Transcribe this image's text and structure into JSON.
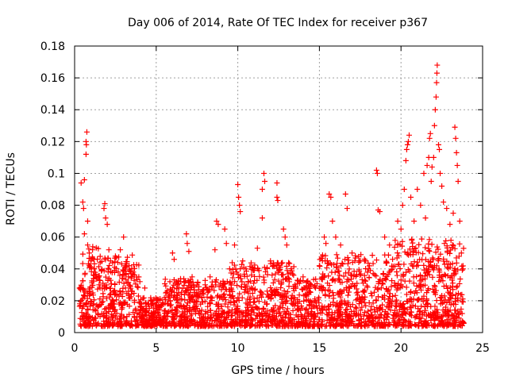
{
  "chart_data": {
    "type": "scatter",
    "title": "Day 006 of 2014, Rate Of TEC Index for receiver p367",
    "xlabel": "GPS time / hours",
    "ylabel": "ROTI / TECUs",
    "xlim": [
      0,
      25
    ],
    "ylim": [
      0,
      0.18
    ],
    "x_ticks": [
      0,
      5,
      10,
      15,
      20,
      25
    ],
    "y_ticks": [
      0,
      0.02,
      0.04,
      0.06,
      0.08,
      0.1,
      0.12,
      0.14,
      0.16,
      0.18
    ],
    "x_tick_labels": [
      "0",
      "5",
      "10",
      "15",
      "20",
      "25"
    ],
    "y_tick_labels": [
      "0",
      "0.02",
      "0.04",
      "0.06",
      "0.08",
      "0.1",
      "0.12",
      "0.14",
      "0.16",
      "0.18"
    ],
    "grid": true,
    "marker": "+",
    "color": "#ff0000",
    "series": [
      {
        "name": "ROTI",
        "points": [
          [
            0.3,
            0.028
          ],
          [
            0.4,
            0.094
          ],
          [
            0.5,
            0.082
          ],
          [
            0.55,
            0.078
          ],
          [
            0.6,
            0.096
          ],
          [
            0.6,
            0.062
          ],
          [
            0.7,
            0.12
          ],
          [
            0.7,
            0.112
          ],
          [
            0.72,
            0.118
          ],
          [
            0.75,
            0.126
          ],
          [
            0.8,
            0.07
          ],
          [
            0.8,
            0.055
          ],
          [
            0.9,
            0.05
          ],
          [
            1.0,
            0.045
          ],
          [
            1.1,
            0.052
          ],
          [
            1.2,
            0.04
          ],
          [
            1.3,
            0.035
          ],
          [
            1.5,
            0.03
          ],
          [
            1.8,
            0.078
          ],
          [
            1.85,
            0.081
          ],
          [
            1.9,
            0.072
          ],
          [
            2.0,
            0.068
          ],
          [
            2.1,
            0.052
          ],
          [
            2.2,
            0.045
          ],
          [
            2.5,
            0.048
          ],
          [
            2.8,
            0.052
          ],
          [
            3.0,
            0.06
          ],
          [
            3.1,
            0.042
          ],
          [
            3.3,
            0.035
          ],
          [
            3.6,
            0.038
          ],
          [
            4.0,
            0.032
          ],
          [
            4.3,
            0.028
          ],
          [
            4.5,
            0.018
          ],
          [
            5.0,
            0.015
          ],
          [
            5.5,
            0.022
          ],
          [
            6.0,
            0.05
          ],
          [
            6.1,
            0.046
          ],
          [
            6.3,
            0.03
          ],
          [
            6.5,
            0.032
          ],
          [
            6.85,
            0.062
          ],
          [
            6.9,
            0.056
          ],
          [
            7.0,
            0.051
          ],
          [
            7.2,
            0.035
          ],
          [
            7.5,
            0.03
          ],
          [
            8.0,
            0.03
          ],
          [
            8.3,
            0.035
          ],
          [
            8.6,
            0.052
          ],
          [
            8.7,
            0.07
          ],
          [
            8.8,
            0.068
          ],
          [
            9.2,
            0.065
          ],
          [
            9.3,
            0.056
          ],
          [
            9.5,
            0.04
          ],
          [
            9.8,
            0.055
          ],
          [
            10.0,
            0.093
          ],
          [
            10.05,
            0.085
          ],
          [
            10.1,
            0.08
          ],
          [
            10.15,
            0.076
          ],
          [
            10.3,
            0.045
          ],
          [
            10.5,
            0.04
          ],
          [
            11.0,
            0.04
          ],
          [
            11.2,
            0.053
          ],
          [
            11.5,
            0.072
          ],
          [
            11.5,
            0.09
          ],
          [
            11.6,
            0.1
          ],
          [
            11.65,
            0.095
          ],
          [
            12.0,
            0.045
          ],
          [
            12.2,
            0.042
          ],
          [
            12.4,
            0.085
          ],
          [
            12.45,
            0.083
          ],
          [
            12.4,
            0.094
          ],
          [
            12.8,
            0.065
          ],
          [
            12.9,
            0.06
          ],
          [
            13.0,
            0.055
          ],
          [
            13.5,
            0.03
          ],
          [
            14.0,
            0.035
          ],
          [
            14.5,
            0.03
          ],
          [
            15.0,
            0.042
          ],
          [
            15.3,
            0.06
          ],
          [
            15.4,
            0.056
          ],
          [
            15.6,
            0.087
          ],
          [
            15.7,
            0.085
          ],
          [
            15.8,
            0.07
          ],
          [
            16.0,
            0.06
          ],
          [
            16.3,
            0.055
          ],
          [
            16.6,
            0.087
          ],
          [
            16.7,
            0.078
          ],
          [
            17.0,
            0.05
          ],
          [
            17.5,
            0.045
          ],
          [
            18.0,
            0.04
          ],
          [
            18.5,
            0.102
          ],
          [
            18.55,
            0.1
          ],
          [
            18.6,
            0.077
          ],
          [
            18.7,
            0.076
          ],
          [
            19.0,
            0.06
          ],
          [
            19.3,
            0.055
          ],
          [
            19.8,
            0.07
          ],
          [
            20.0,
            0.065
          ],
          [
            20.1,
            0.08
          ],
          [
            20.2,
            0.09
          ],
          [
            20.3,
            0.108
          ],
          [
            20.35,
            0.115
          ],
          [
            20.4,
            0.118
          ],
          [
            20.45,
            0.12
          ],
          [
            20.5,
            0.124
          ],
          [
            20.6,
            0.085
          ],
          [
            20.8,
            0.07
          ],
          [
            21.0,
            0.09
          ],
          [
            21.2,
            0.08
          ],
          [
            21.4,
            0.1
          ],
          [
            21.5,
            0.072
          ],
          [
            21.6,
            0.105
          ],
          [
            21.7,
            0.11
          ],
          [
            21.75,
            0.122
          ],
          [
            21.8,
            0.125
          ],
          [
            21.85,
            0.095
          ],
          [
            21.9,
            0.104
          ],
          [
            22.0,
            0.11
          ],
          [
            22.05,
            0.13
          ],
          [
            22.1,
            0.14
          ],
          [
            22.15,
            0.148
          ],
          [
            22.18,
            0.157
          ],
          [
            22.2,
            0.163
          ],
          [
            22.22,
            0.168
          ],
          [
            22.3,
            0.118
          ],
          [
            22.35,
            0.115
          ],
          [
            22.4,
            0.1
          ],
          [
            22.5,
            0.092
          ],
          [
            22.6,
            0.082
          ],
          [
            22.8,
            0.078
          ],
          [
            23.0,
            0.068
          ],
          [
            23.2,
            0.075
          ],
          [
            23.3,
            0.129
          ],
          [
            23.35,
            0.122
          ],
          [
            23.4,
            0.113
          ],
          [
            23.45,
            0.105
          ],
          [
            23.5,
            0.095
          ],
          [
            23.6,
            0.07
          ],
          [
            23.7,
            0.05
          ],
          [
            23.8,
            0.04
          ]
        ]
      }
    ]
  }
}
